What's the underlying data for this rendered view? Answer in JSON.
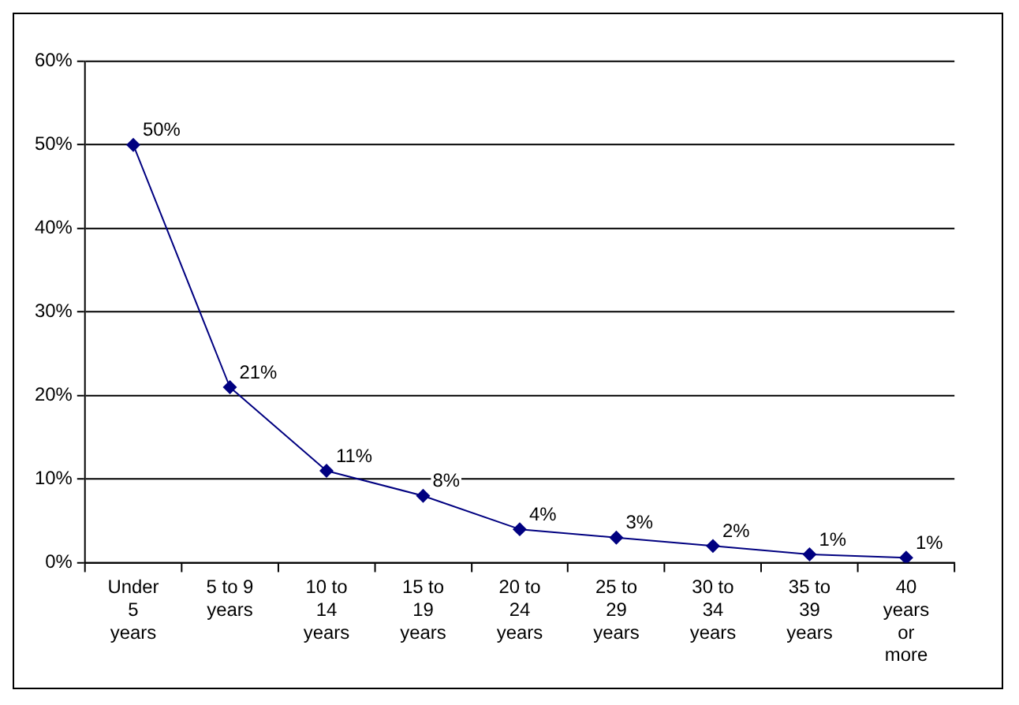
{
  "chart_data": {
    "type": "line",
    "categories": [
      "Under 5 years",
      "5 to 9 years",
      "10 to 14 years",
      "15 to 19 years",
      "20 to 24 years",
      "25 to 29 years",
      "30 to 34 years",
      "35 to 39 years",
      "40 years or more"
    ],
    "series": [
      {
        "color": "#000080",
        "values": [
          50,
          21,
          11,
          8,
          4,
          3,
          2,
          1,
          0.6
        ],
        "value_labels": [
          "50%",
          "21%",
          "11%",
          "8%",
          "4%",
          "3%",
          "2%",
          "1%",
          "1%"
        ]
      }
    ],
    "ylim": [
      0,
      60
    ],
    "yticks": [
      {
        "value": 0,
        "label": "0%"
      },
      {
        "value": 10,
        "label": "10%"
      },
      {
        "value": 20,
        "label": "20%"
      },
      {
        "value": 30,
        "label": "30%"
      },
      {
        "value": 40,
        "label": "40%"
      },
      {
        "value": 50,
        "label": "50%"
      },
      {
        "value": 60,
        "label": "60%"
      }
    ],
    "grid": "y",
    "legend": false,
    "marker": "diamond",
    "line_style": "solid"
  }
}
